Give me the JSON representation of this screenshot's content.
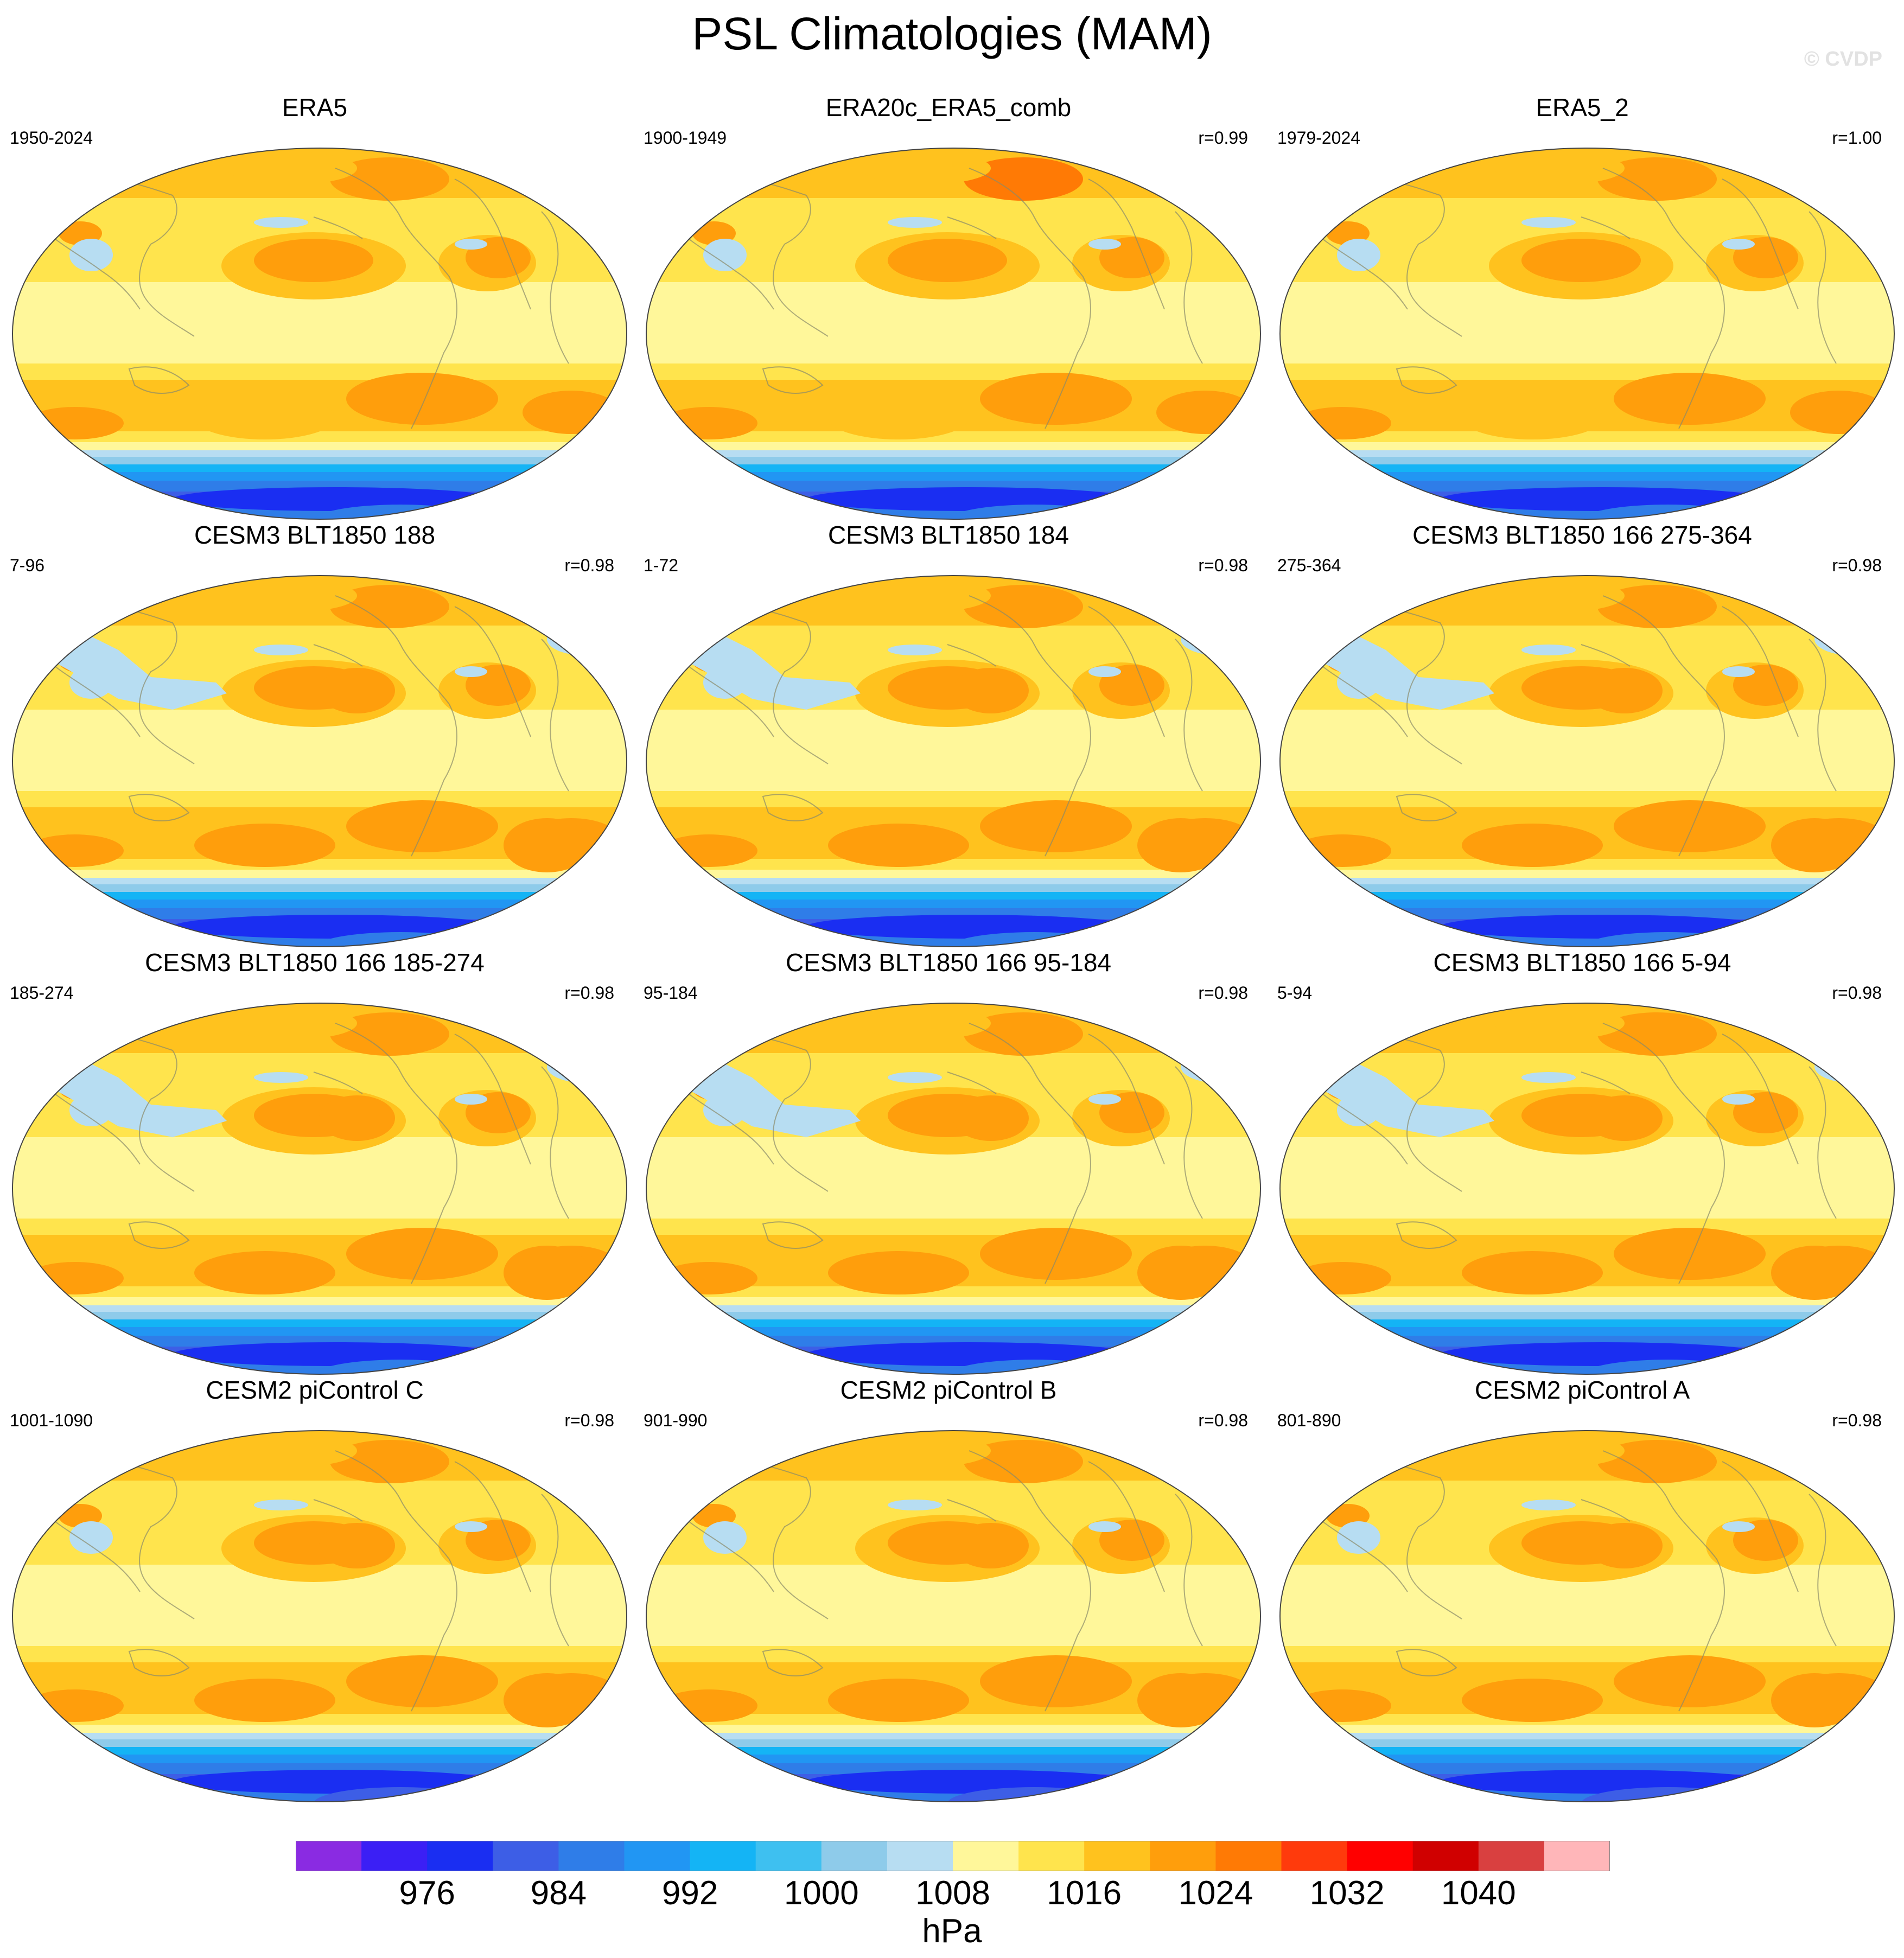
{
  "title": "PSL Climatologies (MAM)",
  "watermark": "© CVDP",
  "panels": [
    {
      "title": "ERA5",
      "period": "1950-2024",
      "r": "",
      "variant": "obs"
    },
    {
      "title": "ERA20c_ERA5_comb",
      "period": "1900-1949",
      "r": "r=0.99",
      "variant": "obs"
    },
    {
      "title": "ERA5_2",
      "period": "1979-2024",
      "r": "r=1.00",
      "variant": "obs"
    },
    {
      "title": "CESM3 BLT1850 188",
      "period": "7-96",
      "r": "r=0.98",
      "variant": "cesm3"
    },
    {
      "title": "CESM3 BLT1850 184",
      "period": "1-72",
      "r": "r=0.98",
      "variant": "cesm3"
    },
    {
      "title": "CESM3 BLT1850 166 275-364",
      "period": "275-364",
      "r": "r=0.98",
      "variant": "cesm3"
    },
    {
      "title": "CESM3 BLT1850 166 185-274",
      "period": "185-274",
      "r": "r=0.98",
      "variant": "cesm3"
    },
    {
      "title": "CESM3 BLT1850 166 95-184",
      "period": "95-184",
      "r": "r=0.98",
      "variant": "cesm3"
    },
    {
      "title": "CESM3 BLT1850 166 5-94",
      "period": "5-94",
      "r": "r=0.98",
      "variant": "cesm3"
    },
    {
      "title": "CESM2 piControl C",
      "period": "1001-1090",
      "r": "r=0.98",
      "variant": "cesm2"
    },
    {
      "title": "CESM2 piControl B",
      "period": "901-990",
      "r": "r=0.98",
      "variant": "cesm2"
    },
    {
      "title": "CESM2 piControl A",
      "period": "801-890",
      "r": "r=0.98",
      "variant": "cesm2"
    }
  ],
  "colorbar": {
    "units": "hPa",
    "colors": [
      "#8a2be2",
      "#3b1ff5",
      "#1a2ef2",
      "#3d5ee6",
      "#2f7de8",
      "#2196f3",
      "#14b4f5",
      "#3ec0f0",
      "#8ecbea",
      "#b7ddf2",
      "#fff79a",
      "#ffe44d",
      "#ffc21e",
      "#ff9e0c",
      "#ff7a05",
      "#ff3a0c",
      "#ff0000",
      "#d00000",
      "#d94040",
      "#ffb6b9"
    ],
    "labels": [
      "976",
      "984",
      "992",
      "1000",
      "1008",
      "1016",
      "1024",
      "1032",
      "1040"
    ]
  },
  "chart_data": {
    "type": "contour-map",
    "field": "sea level pressure",
    "season": "MAM",
    "projection": "Robinson (Pacific-centered)",
    "contour_levels_hPa": [
      972,
      976,
      980,
      984,
      988,
      992,
      996,
      1000,
      1004,
      1008,
      1012,
      1016,
      1020,
      1024,
      1028,
      1032,
      1036,
      1040,
      1044
    ],
    "pattern_correlation_with_ERA5": {
      "ERA20c_ERA5_comb": 0.99,
      "ERA5_2": 1.0,
      "CESM3 BLT1850 188": 0.98,
      "CESM3 BLT1850 184": 0.98,
      "CESM3 BLT1850 166 275-364": 0.98,
      "CESM3 BLT1850 166 185-274": 0.98,
      "CESM3 BLT1850 166 95-184": 0.98,
      "CESM3 BLT1850 166 5-94": 0.98,
      "CESM2 piControl C": 0.98,
      "CESM2 piControl B": 0.98,
      "CESM2 piControl A": 0.98
    }
  }
}
